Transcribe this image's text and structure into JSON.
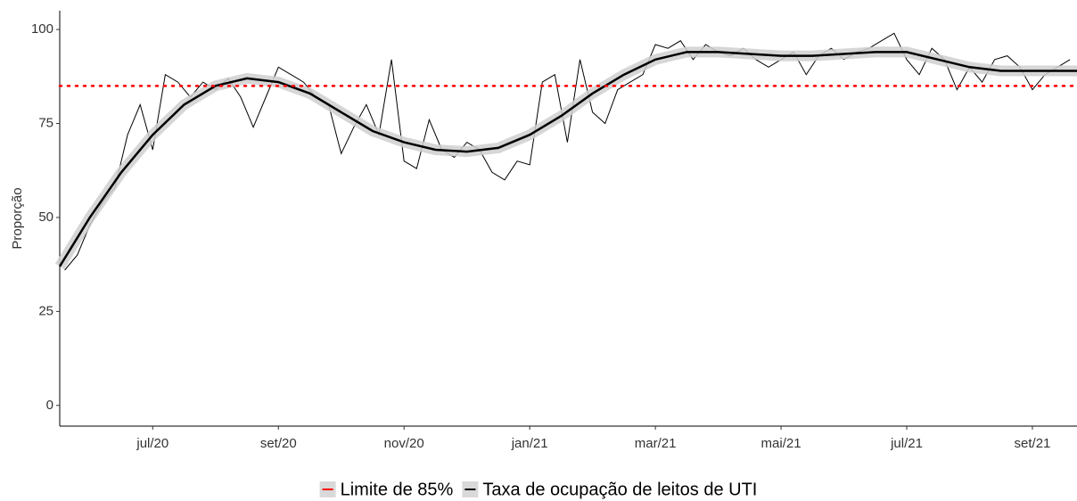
{
  "chart_data": {
    "type": "line",
    "y_label": "Proporção",
    "xlim": [
      4.52,
      20.71
    ],
    "xticks": [
      {
        "value": 6,
        "label": "jul/20"
      },
      {
        "value": 8,
        "label": "set/20"
      },
      {
        "value": 10,
        "label": "nov/20"
      },
      {
        "value": 12,
        "label": "jan/21"
      },
      {
        "value": 14,
        "label": "mar/21"
      },
      {
        "value": 16,
        "label": "mai/21"
      },
      {
        "value": 18,
        "label": "jul/21"
      },
      {
        "value": 20,
        "label": "set/21"
      }
    ],
    "ylim": [
      -5.5,
      105
    ],
    "yticks": [
      0,
      25,
      50,
      75,
      100
    ],
    "hline": {
      "name": "Limite de 85%",
      "value": 85,
      "color": "#ff0000"
    },
    "series": [
      {
        "name": "Taxa de ocupação de leitos de UTI",
        "color": "#000000",
        "x": [
          4.6,
          4.8,
          5.0,
          5.2,
          5.4,
          5.6,
          5.8,
          6.0,
          6.2,
          6.4,
          6.6,
          6.8,
          7.0,
          7.2,
          7.4,
          7.6,
          7.8,
          8.0,
          8.2,
          8.4,
          8.6,
          8.8,
          9.0,
          9.2,
          9.4,
          9.6,
          9.8,
          10.0,
          10.2,
          10.4,
          10.6,
          10.8,
          11.0,
          11.2,
          11.4,
          11.6,
          11.8,
          12.0,
          12.2,
          12.4,
          12.6,
          12.8,
          13.0,
          13.2,
          13.4,
          13.6,
          13.8,
          14.0,
          14.2,
          14.4,
          14.6,
          14.8,
          15.0,
          15.2,
          15.4,
          15.6,
          15.8,
          16.0,
          16.2,
          16.4,
          16.6,
          16.8,
          17.0,
          17.2,
          17.4,
          17.6,
          17.8,
          18.0,
          18.2,
          18.4,
          18.6,
          18.8,
          19.0,
          19.2,
          19.4,
          19.6,
          19.8,
          20.0,
          20.2,
          20.4,
          20.6
        ],
        "values": [
          36,
          40,
          48,
          54,
          58,
          72,
          80,
          68,
          88,
          86,
          82,
          86,
          84,
          87,
          82,
          74,
          82,
          90,
          88,
          86,
          82,
          80,
          67,
          74,
          80,
          72,
          92,
          65,
          63,
          76,
          68,
          66,
          70,
          68,
          62,
          60,
          65,
          64,
          86,
          88,
          70,
          92,
          78,
          75,
          84,
          86,
          88,
          96,
          95,
          97,
          92,
          96,
          94,
          93,
          95,
          92,
          90,
          92,
          94,
          88,
          93,
          95,
          92,
          94,
          95,
          97,
          99,
          92,
          88,
          95,
          92,
          84,
          90,
          86,
          92,
          93,
          90,
          84,
          88,
          90,
          92
        ]
      }
    ],
    "smooth": {
      "color": "#000000",
      "x": [
        4.52,
        5,
        5.5,
        6,
        6.5,
        7,
        7.5,
        8,
        8.5,
        9,
        9.5,
        10,
        10.5,
        11,
        11.5,
        12,
        12.5,
        13,
        13.5,
        14,
        14.5,
        15,
        15.5,
        16,
        16.5,
        17,
        17.5,
        18,
        18.5,
        19,
        19.5,
        20,
        20.71
      ],
      "values": [
        37,
        50,
        62,
        72,
        80,
        85,
        87,
        86,
        83,
        78,
        73,
        70,
        68,
        67.5,
        68.5,
        72,
        77,
        83,
        88,
        92,
        94,
        94,
        93.5,
        93,
        93,
        93.5,
        94,
        94,
        92,
        90,
        89,
        89,
        89
      ]
    }
  }
}
